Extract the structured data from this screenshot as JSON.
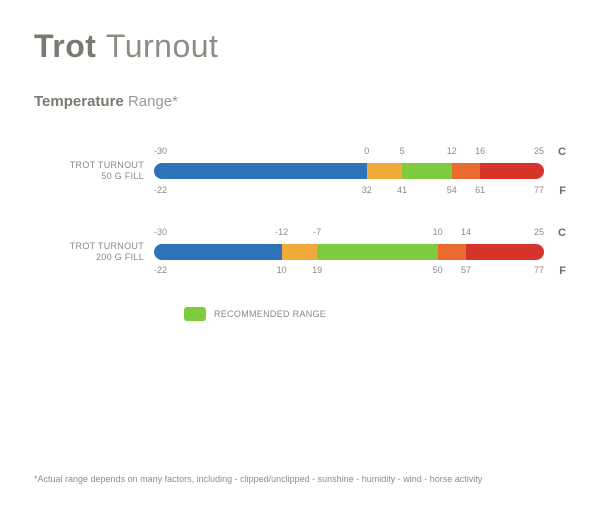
{
  "title": {
    "bold": "Trot",
    "light": "Turnout"
  },
  "subtitle": {
    "bold": "Temperature",
    "light": "Range*"
  },
  "colors": {
    "blue": "#2f72b8",
    "yellow": "#f0a93a",
    "green": "#7ecb3e",
    "orange": "#ea6a2f",
    "red": "#d6332b",
    "legend_swatch": "#7ecb3e"
  },
  "range": {
    "min": -30,
    "max": 25
  },
  "bars": [
    {
      "label_line1": "TROT TURNOUT",
      "label_line2": "50 G FILL",
      "unit_top": "C",
      "unit_bottom": "F",
      "segments": [
        {
          "from": -30,
          "to": 0,
          "color": "blue"
        },
        {
          "from": 0,
          "to": 5,
          "color": "yellow"
        },
        {
          "from": 5,
          "to": 12,
          "color": "green"
        },
        {
          "from": 12,
          "to": 16,
          "color": "orange"
        },
        {
          "from": 16,
          "to": 25,
          "color": "red"
        }
      ],
      "ticks_top": [
        {
          "p": -30,
          "t": "-30"
        },
        {
          "p": 0,
          "t": "0"
        },
        {
          "p": 5,
          "t": "5"
        },
        {
          "p": 12,
          "t": "12"
        },
        {
          "p": 16,
          "t": "16"
        },
        {
          "p": 25,
          "t": "25"
        }
      ],
      "ticks_bottom": [
        {
          "p": -30,
          "t": "-22"
        },
        {
          "p": 0,
          "t": "32"
        },
        {
          "p": 5,
          "t": "41"
        },
        {
          "p": 12,
          "t": "54"
        },
        {
          "p": 16,
          "t": "61"
        },
        {
          "p": 25,
          "t": "77"
        }
      ]
    },
    {
      "label_line1": "TROT TURNOUT",
      "label_line2": "200 G FILL",
      "unit_top": "C",
      "unit_bottom": "F",
      "segments": [
        {
          "from": -30,
          "to": -12,
          "color": "blue"
        },
        {
          "from": -12,
          "to": -7,
          "color": "yellow"
        },
        {
          "from": -7,
          "to": 10,
          "color": "green"
        },
        {
          "from": 10,
          "to": 14,
          "color": "orange"
        },
        {
          "from": 14,
          "to": 25,
          "color": "red"
        }
      ],
      "ticks_top": [
        {
          "p": -30,
          "t": "-30"
        },
        {
          "p": -12,
          "t": "-12"
        },
        {
          "p": -7,
          "t": "-7"
        },
        {
          "p": 10,
          "t": "10"
        },
        {
          "p": 14,
          "t": "14"
        },
        {
          "p": 25,
          "t": "25"
        }
      ],
      "ticks_bottom": [
        {
          "p": -30,
          "t": "-22"
        },
        {
          "p": -12,
          "t": "10"
        },
        {
          "p": -7,
          "t": "19"
        },
        {
          "p": 10,
          "t": "50"
        },
        {
          "p": 14,
          "t": "57"
        },
        {
          "p": 25,
          "t": "77"
        }
      ]
    }
  ],
  "legend_text": "RECOMMENDED RANGE",
  "footnote": "*Actual range depends on many factors, including - clipped/unclipped - sunshine - humidity - wind - horse activity"
}
